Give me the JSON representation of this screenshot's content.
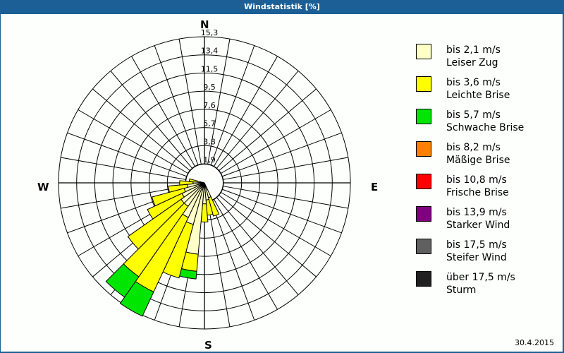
{
  "window": {
    "title": "Windstatistik [%]"
  },
  "footer": {
    "date": "30.4.2015"
  },
  "compass": {
    "n": "N",
    "e": "E",
    "s": "S",
    "w": "W"
  },
  "legend": [
    {
      "line1": "bis 2,1 m/s",
      "line2": "Leiser Zug",
      "color": "#ffffc8"
    },
    {
      "line1": "bis 3,6 m/s",
      "line2": "Leichte Brise",
      "color": "#ffff00"
    },
    {
      "line1": "bis 5,7 m/s",
      "line2": "Schwache Brise",
      "color": "#00e600"
    },
    {
      "line1": "bis 8,2 m/s",
      "line2": "Mäßige Brise",
      "color": "#ff8000"
    },
    {
      "line1": "bis 10,8 m/s",
      "line2": "Frische Brise",
      "color": "#ff0000"
    },
    {
      "line1": "bis 13,9 m/s",
      "line2": "Starker Wind",
      "color": "#800080"
    },
    {
      "line1": "bis 17,5 m/s",
      "line2": "Steifer Wind",
      "color": "#606060"
    },
    {
      "line1": "über 17,5 m/s",
      "line2": "Sturm",
      "color": "#202020"
    }
  ],
  "chart_data": {
    "type": "windrose",
    "title": "Windstatistik [%]",
    "radial_ticks": [
      "1,9",
      "3,8",
      "5,7",
      "7,6",
      "9,5",
      "11,5",
      "13,4",
      "15,3"
    ],
    "radial_max": 15.3,
    "sector_width_deg": 10,
    "series_names": [
      "bis 2,1 m/s",
      "bis 3,6 m/s",
      "bis 5,7 m/s"
    ],
    "sectors": [
      {
        "dir": 160,
        "values": [
          1.6,
          2.0,
          0
        ]
      },
      {
        "dir": 170,
        "values": [
          1.8,
          1.6,
          0
        ]
      },
      {
        "dir": 180,
        "values": [
          2.2,
          1.9,
          0
        ]
      },
      {
        "dir": 190,
        "values": [
          7.5,
          1.8,
          0.8
        ]
      },
      {
        "dir": 200,
        "values": [
          4.5,
          5.8,
          0
        ]
      },
      {
        "dir": 210,
        "values": [
          4.0,
          8.6,
          2.8
        ]
      },
      {
        "dir": 220,
        "values": [
          3.0,
          9.0,
          2.6
        ]
      },
      {
        "dir": 230,
        "values": [
          3.0,
          6.8,
          0
        ]
      },
      {
        "dir": 240,
        "values": [
          2.6,
          4.0,
          0
        ]
      },
      {
        "dir": 250,
        "values": [
          2.2,
          3.5,
          0
        ]
      },
      {
        "dir": 260,
        "values": [
          1.8,
          2.0,
          0
        ]
      },
      {
        "dir": 270,
        "values": [
          1.2,
          1.4,
          0
        ]
      },
      {
        "dir": 280,
        "values": [
          0.8,
          0.8,
          0
        ]
      }
    ]
  }
}
